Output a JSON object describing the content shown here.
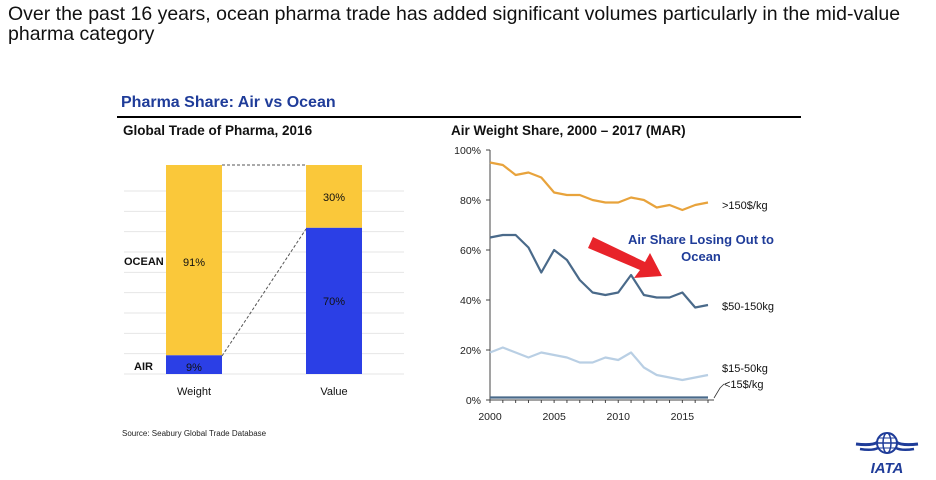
{
  "headline": "Over the past 16 years, ocean pharma trade has added significant volumes particularly in the mid-value pharma category",
  "section_title": "Pharma Share: Air vs Ocean",
  "source": "Source: Seabury Global Trade Database",
  "logo_text": "IATA",
  "colors": {
    "ocean": "#fac83a",
    "air": "#2b3fe6",
    "brand": "#1f3c99",
    "arrow": "#e8232a"
  },
  "chart_data": [
    {
      "type": "bar",
      "stacked": true,
      "title": "Global Trade of Pharma, 2016",
      "categories": [
        "Weight",
        "Value"
      ],
      "series": [
        {
          "name": "AIR",
          "values": [
            9,
            70
          ],
          "labels": [
            "9%",
            "70%"
          ]
        },
        {
          "name": "OCEAN",
          "values": [
            91,
            30
          ],
          "labels": [
            "91%",
            "30%"
          ]
        }
      ],
      "ylim": [
        0,
        100
      ],
      "grid": true
    },
    {
      "type": "line",
      "title": "Air Weight Share, 2000 – 2017 (MAR)",
      "ylim": [
        0,
        100
      ],
      "xlim": [
        2000,
        2017
      ],
      "xticks": [
        2000,
        2005,
        2010,
        2015
      ],
      "yticks": [
        0,
        20,
        40,
        60,
        80,
        100
      ],
      "ytick_labels": [
        "0%",
        "20%",
        "40%",
        "60%",
        "80%",
        "100%"
      ],
      "x": [
        2000,
        2001,
        2002,
        2003,
        2004,
        2005,
        2006,
        2007,
        2008,
        2009,
        2010,
        2011,
        2012,
        2013,
        2014,
        2015,
        2016,
        2017
      ],
      "series": [
        {
          "name": ">150$/kg",
          "color": "#e8a33c",
          "values": [
            95,
            94,
            90,
            91,
            89,
            83,
            82,
            82,
            80,
            79,
            79,
            81,
            80,
            77,
            78,
            76,
            78,
            79
          ]
        },
        {
          "name": "$50-150kg",
          "color": "#4a6a8a",
          "values": [
            65,
            66,
            66,
            61,
            51,
            60,
            56,
            48,
            43,
            42,
            43,
            50,
            42,
            41,
            41,
            43,
            37,
            38
          ]
        },
        {
          "name": "$15-50kg",
          "color": "#b9cfe4",
          "values": [
            19,
            21,
            19,
            17,
            19,
            18,
            17,
            15,
            15,
            17,
            16,
            19,
            13,
            10,
            9,
            8,
            9,
            10
          ]
        },
        {
          "name": "<15$/kg",
          "color": "#4a6a8a",
          "values": [
            1,
            1,
            1,
            1,
            1,
            1,
            1,
            1,
            1,
            1,
            1,
            1,
            1,
            1,
            1,
            1,
            1,
            1
          ]
        }
      ],
      "annotation": "Air Share Losing Out to Ocean"
    }
  ]
}
